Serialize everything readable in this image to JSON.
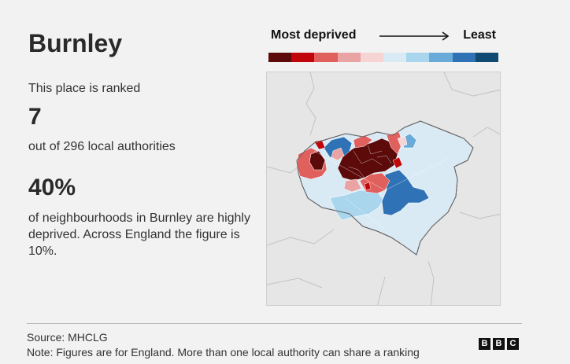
{
  "title": "Burnley",
  "intro": "This place is ranked",
  "rank": "7",
  "rank_sub": "out of 296 local authorities",
  "percent": "40%",
  "description": "of neighbourhoods in Burnley are highly deprived. Across England the figure is 10%.",
  "legend": {
    "left_label": "Most deprived",
    "right_label": "Least",
    "colors": [
      "#5c0a0a",
      "#c0060b",
      "#e0605e",
      "#eaa3a3",
      "#f7d4d4",
      "#d9eaf5",
      "#a9d5ed",
      "#6aaad9",
      "#2f72b5",
      "#0e4a72"
    ]
  },
  "map": {
    "outside_color": "#e6e6e6",
    "boundary_color": "#a8a8a8"
  },
  "footer": {
    "source": "Source: MHCLG",
    "note": "Note: Figures are for England. More than one local authority can share a ranking",
    "logo_letters": [
      "B",
      "B",
      "C"
    ]
  }
}
